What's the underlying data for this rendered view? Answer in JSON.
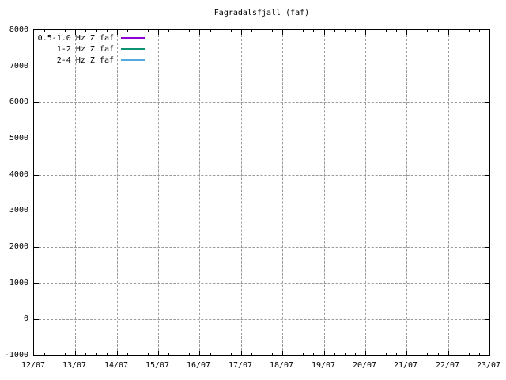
{
  "title": "Fagradalsfjall (faf)",
  "colors": {
    "background": "#ffffff",
    "frame": "#000000",
    "grid": "#999999",
    "text": "#000000"
  },
  "chart_data": {
    "type": "line",
    "title": "Fagradalsfjall (faf)",
    "xlabel": "",
    "ylabel": "",
    "ylim": [
      -1000,
      8000
    ],
    "y_ticks": [
      -1000,
      0,
      1000,
      2000,
      3000,
      4000,
      5000,
      6000,
      7000,
      8000
    ],
    "x_tick_labels": [
      "12/07",
      "13/07",
      "14/07",
      "15/07",
      "16/07",
      "17/07",
      "18/07",
      "19/07",
      "20/07",
      "21/07",
      "22/07",
      "23/07"
    ],
    "x_minor_ticks_per_interval": 3,
    "grid": true,
    "grid_style": "dashed",
    "legend_position": "top-left",
    "series": [
      {
        "name": "0.5-1.0 Hz Z faf",
        "color": "#9400d3",
        "values": []
      },
      {
        "name": "1-2 Hz Z faf",
        "color": "#0e9372",
        "values": []
      },
      {
        "name": "2-4 Hz Z faf",
        "color": "#52abdc",
        "values": []
      }
    ]
  }
}
